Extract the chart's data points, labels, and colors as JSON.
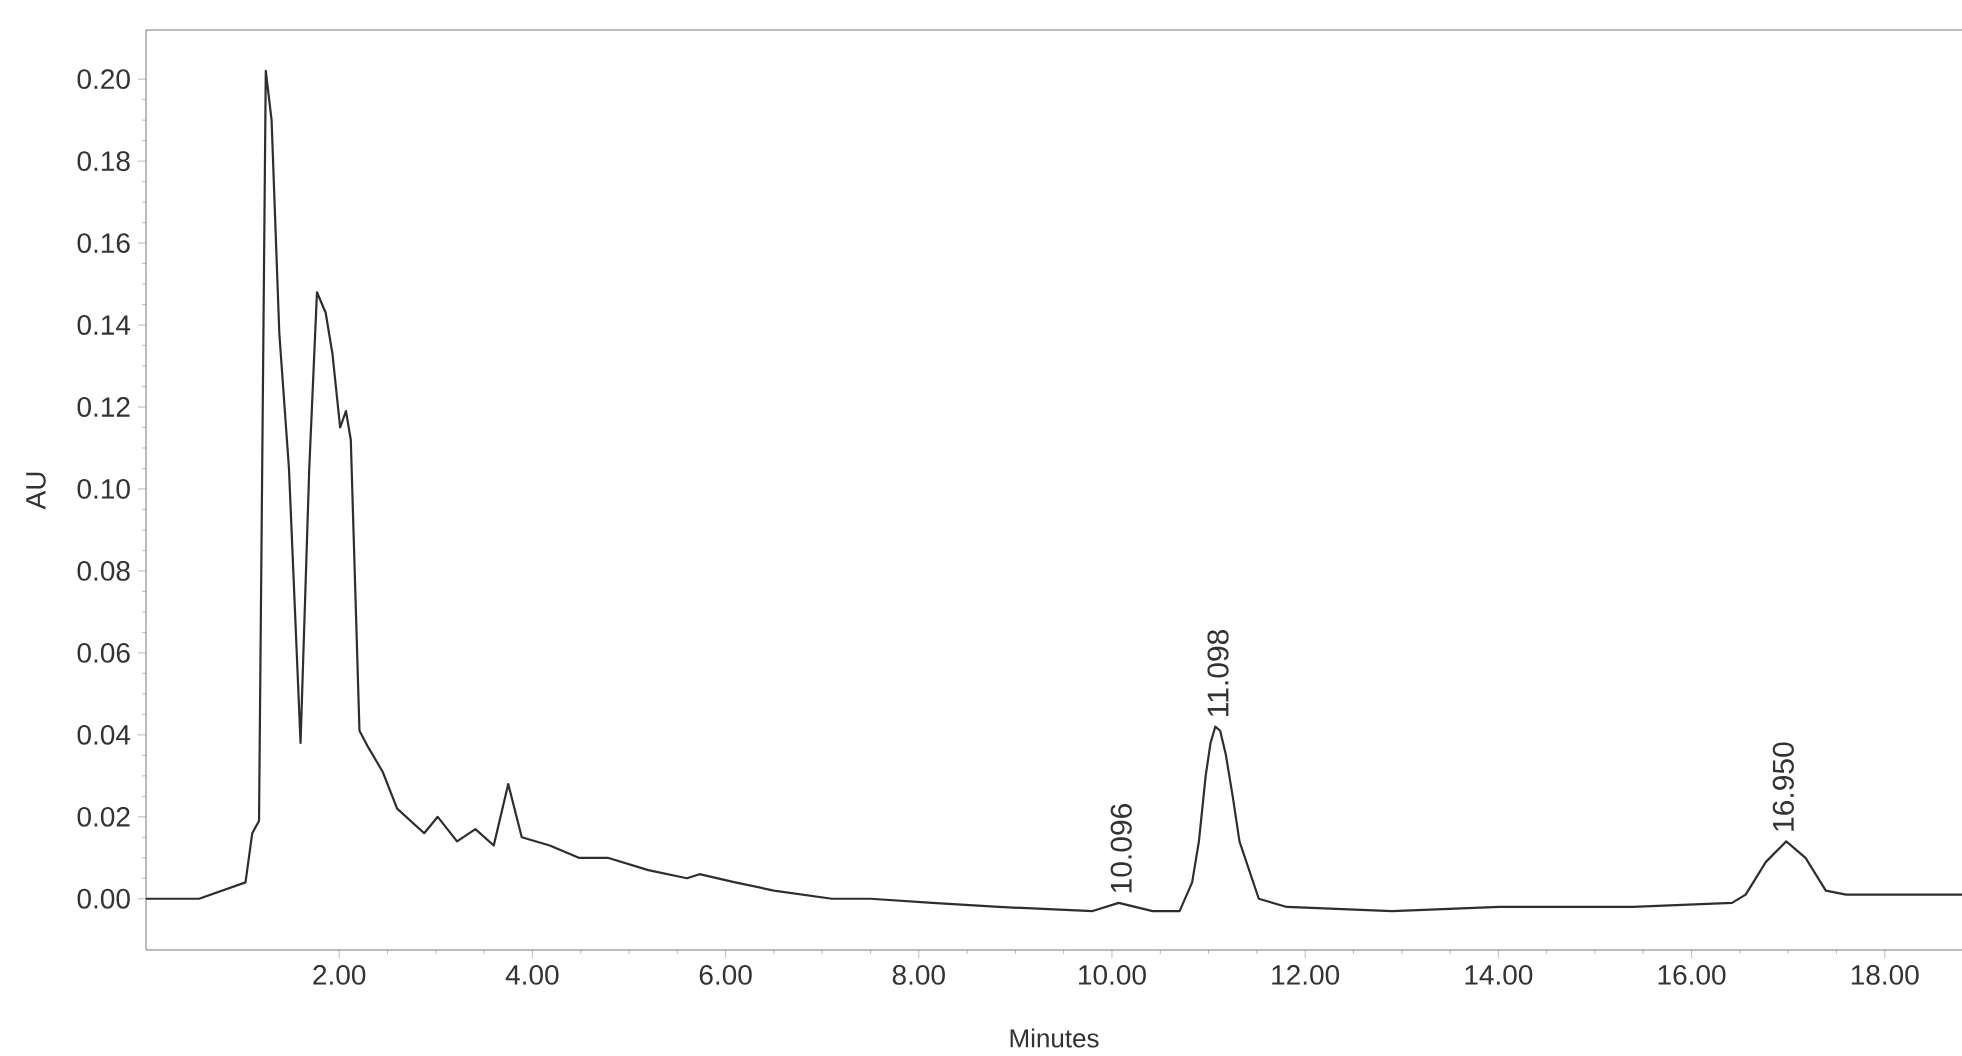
{
  "chart_data": {
    "type": "line",
    "xlabel": "Minutes",
    "ylabel": "AU",
    "x": [
      0,
      0.55,
      1.03,
      1.1,
      1.17,
      1.24,
      1.3,
      1.38,
      1.48,
      1.6,
      1.69,
      1.77,
      1.86,
      1.93,
      2.01,
      2.07,
      2.12,
      2.21,
      2.3,
      2.45,
      2.6,
      2.88,
      3.02,
      3.22,
      3.41,
      3.6,
      3.75,
      3.89,
      4.18,
      4.48,
      4.78,
      5.2,
      5.6,
      5.73,
      6.1,
      6.5,
      7.1,
      7.5,
      8.14,
      8.83,
      9.8,
      10.07,
      10.42,
      10.7,
      10.83,
      10.9,
      10.97,
      11.02,
      11.07,
      11.12,
      11.18,
      11.25,
      11.32,
      11.52,
      11.81,
      12.9,
      14.01,
      15.39,
      16.42,
      16.56,
      16.77,
      16.98,
      17.18,
      17.39,
      17.6,
      18.8
    ],
    "values": [
      0,
      0,
      0.004,
      0.016,
      0.019,
      0.202,
      0.19,
      0.138,
      0.105,
      0.038,
      0.105,
      0.148,
      0.143,
      0.133,
      0.115,
      0.119,
      0.112,
      0.041,
      0.037,
      0.031,
      0.022,
      0.016,
      0.02,
      0.014,
      0.017,
      0.013,
      0.028,
      0.015,
      0.013,
      0.01,
      0.01,
      0.007,
      0.005,
      0.006,
      0.004,
      0.002,
      0,
      0,
      -0.001,
      -0.002,
      -0.003,
      -0.001,
      -0.003,
      -0.003,
      0.004,
      0.014,
      0.03,
      0.038,
      0.042,
      0.041,
      0.035,
      0.025,
      0.014,
      0,
      -0.002,
      -0.003,
      -0.002,
      -0.002,
      -0.001,
      0.001,
      0.009,
      0.014,
      0.01,
      0.002,
      0.001,
      0.001
    ],
    "color": "#2e2e2e",
    "xlim": [
      0,
      18.8
    ],
    "ylim": [
      -0.0125,
      0.212
    ],
    "xticks": [
      {
        "value": 2,
        "label": "2.00"
      },
      {
        "value": 4,
        "label": "4.00"
      },
      {
        "value": 6,
        "label": "6.00"
      },
      {
        "value": 8,
        "label": "8.00"
      },
      {
        "value": 10,
        "label": "10.00"
      },
      {
        "value": 12,
        "label": "12.00"
      },
      {
        "value": 14,
        "label": "14.00"
      },
      {
        "value": 16,
        "label": "16.00"
      },
      {
        "value": 18,
        "label": "18.00"
      }
    ],
    "yticks": [
      {
        "value": 0,
        "label": "0.00"
      },
      {
        "value": 0.02,
        "label": "0.02"
      },
      {
        "value": 0.04,
        "label": "0.04"
      },
      {
        "value": 0.06,
        "label": "0.06"
      },
      {
        "value": 0.08,
        "label": "0.08"
      },
      {
        "value": 0.1,
        "label": "0.10"
      },
      {
        "value": 0.12,
        "label": "0.12"
      },
      {
        "value": 0.14,
        "label": "0.14"
      },
      {
        "value": 0.16,
        "label": "0.16"
      },
      {
        "value": 0.18,
        "label": "0.18"
      },
      {
        "value": 0.2,
        "label": "0.20"
      }
    ],
    "annotations": [
      {
        "text": "10.096",
        "x": 10.096,
        "y": -0.001
      },
      {
        "text": "11.098",
        "x": 11.098,
        "y": 0.042
      },
      {
        "text": "16.950",
        "x": 16.95,
        "y": 0.014
      }
    ],
    "grid": false,
    "marker": "none",
    "line_style": "solid"
  }
}
